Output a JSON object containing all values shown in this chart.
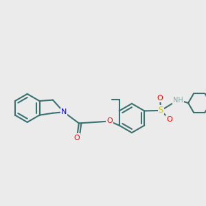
{
  "background": "#ebebeb",
  "bond_color": "#3a7070",
  "bond_width": 1.5,
  "atom_colors": {
    "N": "#0000ff",
    "O": "#ff0000",
    "S": "#cccc00",
    "H": "#7faaaa",
    "C": "#3a7070"
  },
  "font_size": 7.5
}
